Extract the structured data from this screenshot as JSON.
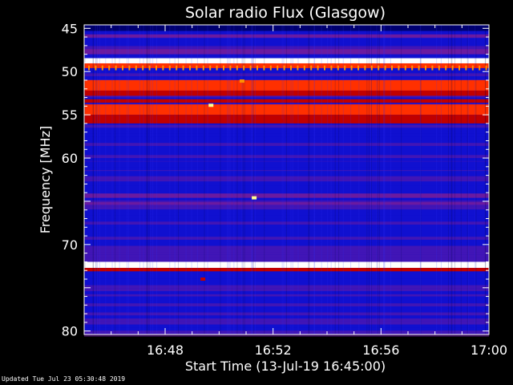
{
  "chart_data": {
    "type": "heatmap",
    "title": "Solar radio Flux (Glasgow)",
    "xlabel": "Start Time (13-Jul-19 16:45:00)",
    "ylabel": "Frequency [MHz]",
    "xlim_minutes": [
      0,
      15
    ],
    "ylim_mhz": [
      44.6,
      80.4
    ],
    "x_ticks": [
      {
        "minute": 3,
        "label": "16:48"
      },
      {
        "minute": 7,
        "label": "16:52"
      },
      {
        "minute": 11,
        "label": "16:56"
      },
      {
        "minute": 15,
        "label": "17:00"
      }
    ],
    "y_ticks": [
      {
        "mhz": 45,
        "label": "45"
      },
      {
        "mhz": 50,
        "label": "50"
      },
      {
        "mhz": 55,
        "label": "55"
      },
      {
        "mhz": 60,
        "label": "60"
      },
      {
        "mhz": 70,
        "label": "70"
      },
      {
        "mhz": 80,
        "label": "80"
      }
    ],
    "colormap": [
      "#000000",
      "#000070",
      "#1010d0",
      "#6a1aa0",
      "#c00000",
      "#ff3000",
      "#ff9000",
      "#ffff90",
      "#ffffff"
    ],
    "background_level": 0.3,
    "bands": [
      {
        "mhz_from": 44.6,
        "mhz_to": 45.3,
        "level": 0.12
      },
      {
        "mhz_from": 45.7,
        "mhz_to": 46.1,
        "level": 0.38
      },
      {
        "mhz_from": 47.4,
        "mhz_to": 48.0,
        "level": 0.36
      },
      {
        "mhz_from": 48.45,
        "mhz_to": 49.05,
        "level": 0.98
      },
      {
        "mhz_from": 49.05,
        "mhz_to": 49.6,
        "level": 0.58
      },
      {
        "mhz_from": 51.0,
        "mhz_to": 52.2,
        "level": 0.62
      },
      {
        "mhz_from": 52.2,
        "mhz_to": 52.8,
        "level": 0.48
      },
      {
        "mhz_from": 53.2,
        "mhz_to": 53.6,
        "level": 0.5
      },
      {
        "mhz_from": 53.8,
        "mhz_to": 55.0,
        "level": 0.58
      },
      {
        "mhz_from": 55.0,
        "mhz_to": 56.0,
        "level": 0.44
      },
      {
        "mhz_from": 57.6,
        "mhz_to": 58.0,
        "level": 0.2
      },
      {
        "mhz_from": 60.4,
        "mhz_to": 60.9,
        "level": 0.2
      },
      {
        "mhz_from": 61.5,
        "mhz_to": 61.9,
        "level": 0.22
      },
      {
        "mhz_from": 62.7,
        "mhz_to": 63.0,
        "level": 0.24
      },
      {
        "mhz_from": 64.1,
        "mhz_to": 64.6,
        "level": 0.42
      },
      {
        "mhz_from": 65.1,
        "mhz_to": 65.4,
        "level": 0.36
      },
      {
        "mhz_from": 66.0,
        "mhz_to": 66.3,
        "level": 0.22
      },
      {
        "mhz_from": 72.0,
        "mhz_to": 72.7,
        "level": 0.97
      },
      {
        "mhz_from": 72.7,
        "mhz_to": 73.1,
        "level": 0.5
      },
      {
        "mhz_from": 76.0,
        "mhz_to": 76.5,
        "level": 0.22
      },
      {
        "mhz_from": 77.4,
        "mhz_to": 77.8,
        "level": 0.2
      }
    ],
    "bursts": [
      {
        "minute": 4.7,
        "mhz": 53.9,
        "level": 0.85
      },
      {
        "minute": 5.85,
        "mhz": 51.1,
        "level": 0.8
      },
      {
        "minute": 6.3,
        "mhz": 64.6,
        "level": 0.88
      },
      {
        "minute": 7.3,
        "mhz": 55.7,
        "level": 0.55
      },
      {
        "minute": 9.5,
        "mhz": 52.6,
        "level": 0.55
      },
      {
        "minute": 4.4,
        "mhz": 74.0,
        "level": 0.5
      }
    ]
  },
  "footer": {
    "updated": "Updated Tue Jul 23 05:30:48 2019"
  }
}
